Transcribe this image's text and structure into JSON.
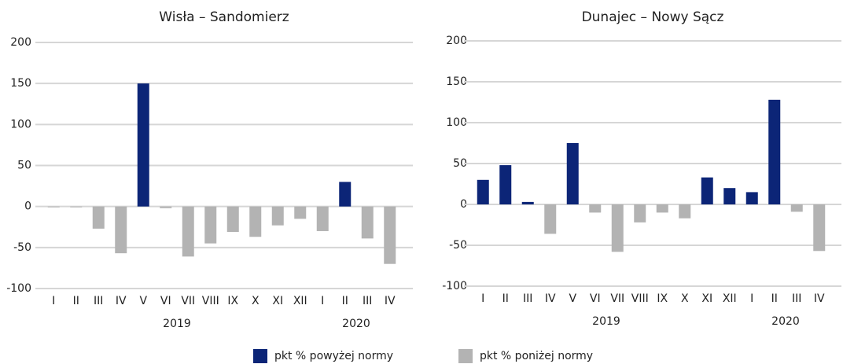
{
  "chart_data": [
    {
      "type": "bar",
      "title": "Wisła – Sandomierz",
      "categories": [
        "I",
        "II",
        "III",
        "IV",
        "V",
        "VI",
        "VII",
        "VIII",
        "IX",
        "X",
        "XI",
        "XII",
        "I",
        "II",
        "III",
        "IV"
      ],
      "groups": [
        "2019",
        "2020"
      ],
      "series": [
        {
          "name": "pkt % powyżej normy",
          "color": "#0c2577",
          "values": [
            null,
            null,
            null,
            null,
            150,
            null,
            null,
            null,
            null,
            null,
            null,
            null,
            null,
            30,
            null,
            null
          ]
        },
        {
          "name": "pkt % poniżej normy",
          "color": "#b3b3b3",
          "values": [
            -1,
            -1,
            -27,
            -57,
            null,
            -2,
            -61,
            -45,
            -31,
            -37,
            -23,
            -15,
            -30,
            null,
            -39,
            -70
          ]
        }
      ],
      "ylim": [
        -100,
        200
      ],
      "yticks": [
        -100,
        -50,
        0,
        50,
        100,
        150,
        200
      ],
      "grid": true
    },
    {
      "type": "bar",
      "title": "Dunajec – Nowy Sącz",
      "categories": [
        "I",
        "II",
        "III",
        "IV",
        "V",
        "VI",
        "VII",
        "VIII",
        "IX",
        "X",
        "XI",
        "XII",
        "I",
        "II",
        "III",
        "IV"
      ],
      "groups": [
        "2019",
        "2020"
      ],
      "series": [
        {
          "name": "pkt % powyżej normy",
          "color": "#0c2577",
          "values": [
            30,
            48,
            3,
            null,
            75,
            null,
            null,
            null,
            null,
            null,
            33,
            20,
            15,
            128,
            null,
            null
          ]
        },
        {
          "name": "pkt % poniżej normy",
          "color": "#b3b3b3",
          "values": [
            null,
            null,
            null,
            -36,
            null,
            -10,
            -58,
            -22,
            -10,
            -17,
            null,
            null,
            null,
            null,
            -9,
            -57
          ]
        }
      ],
      "ylim": [
        -100,
        200
      ],
      "yticks": [
        -100,
        -50,
        0,
        50,
        100,
        150,
        200
      ],
      "grid": true
    }
  ]
}
